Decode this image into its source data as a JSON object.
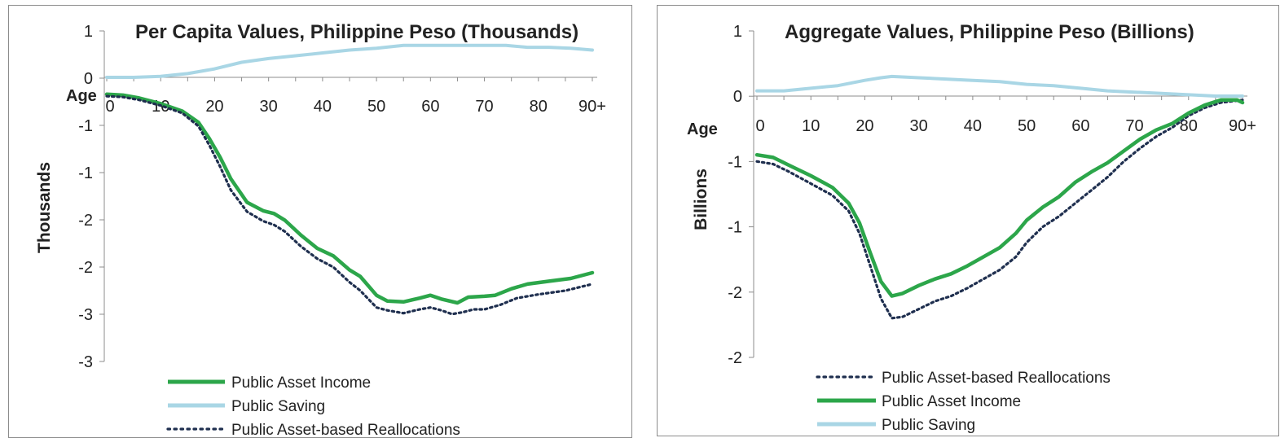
{
  "colors": {
    "public_asset_income": "#2ca64a",
    "public_saving": "#a9d6e5",
    "public_asset_based_reallocations": "#1f2f4f",
    "axis": "#8c8c8c"
  },
  "chart_data": [
    {
      "type": "line",
      "title": "Per Capita Values, Philippine Peso (Thousands)",
      "xlabel": "Age",
      "ylabel": "Thousands",
      "x_tick_labels": [
        "0",
        "10",
        "20",
        "30",
        "40",
        "50",
        "60",
        "70",
        "80",
        "90+"
      ],
      "y_tick_labels": [
        "1",
        "0",
        "-1",
        "-1",
        "-2",
        "-2",
        "-3",
        "-3"
      ],
      "x_range": [
        0,
        90
      ],
      "y_range": [
        -3.0,
        0.5
      ],
      "grid": false,
      "legend_position": "bottom",
      "legend_order": [
        "public_asset_income",
        "public_saving",
        "public_asset_based_reallocations"
      ],
      "series": [
        {
          "key": "public_asset_income",
          "name": "Public Asset Income",
          "style": "solid",
          "points": [
            [
              0,
              -0.18
            ],
            [
              3,
              -0.19
            ],
            [
              6,
              -0.22
            ],
            [
              10,
              -0.28
            ],
            [
              14,
              -0.36
            ],
            [
              17,
              -0.48
            ],
            [
              19,
              -0.65
            ],
            [
              21,
              -0.85
            ],
            [
              23,
              -1.08
            ],
            [
              26,
              -1.33
            ],
            [
              29,
              -1.42
            ],
            [
              31,
              -1.45
            ],
            [
              33,
              -1.52
            ],
            [
              36,
              -1.68
            ],
            [
              39,
              -1.82
            ],
            [
              42,
              -1.9
            ],
            [
              45,
              -2.05
            ],
            [
              47,
              -2.12
            ],
            [
              50,
              -2.32
            ],
            [
              52,
              -2.38
            ],
            [
              55,
              -2.39
            ],
            [
              58,
              -2.35
            ],
            [
              60,
              -2.32
            ],
            [
              62,
              -2.36
            ],
            [
              65,
              -2.4
            ],
            [
              67,
              -2.34
            ],
            [
              70,
              -2.33
            ],
            [
              72,
              -2.32
            ],
            [
              75,
              -2.25
            ],
            [
              78,
              -2.2
            ],
            [
              82,
              -2.17
            ],
            [
              86,
              -2.14
            ],
            [
              90,
              -2.08
            ]
          ]
        },
        {
          "key": "public_saving",
          "name": "Public Saving",
          "style": "solid",
          "points": [
            [
              0,
              0.0
            ],
            [
              5,
              0.0
            ],
            [
              10,
              0.01
            ],
            [
              15,
              0.04
            ],
            [
              20,
              0.09
            ],
            [
              25,
              0.16
            ],
            [
              30,
              0.2
            ],
            [
              35,
              0.23
            ],
            [
              40,
              0.26
            ],
            [
              45,
              0.29
            ],
            [
              50,
              0.31
            ],
            [
              55,
              0.34
            ],
            [
              60,
              0.34
            ],
            [
              65,
              0.34
            ],
            [
              70,
              0.34
            ],
            [
              74,
              0.34
            ],
            [
              78,
              0.32
            ],
            [
              82,
              0.32
            ],
            [
              86,
              0.31
            ],
            [
              90,
              0.29
            ]
          ]
        },
        {
          "key": "public_asset_based_reallocations",
          "name": "Public Asset-based Reallocations",
          "style": "dotted",
          "points": [
            [
              0,
              -0.2
            ],
            [
              3,
              -0.21
            ],
            [
              6,
              -0.24
            ],
            [
              10,
              -0.3
            ],
            [
              14,
              -0.38
            ],
            [
              17,
              -0.52
            ],
            [
              19,
              -0.72
            ],
            [
              21,
              -0.95
            ],
            [
              23,
              -1.2
            ],
            [
              26,
              -1.43
            ],
            [
              29,
              -1.53
            ],
            [
              31,
              -1.57
            ],
            [
              33,
              -1.64
            ],
            [
              36,
              -1.8
            ],
            [
              39,
              -1.93
            ],
            [
              42,
              -2.02
            ],
            [
              45,
              -2.18
            ],
            [
              47,
              -2.27
            ],
            [
              50,
              -2.45
            ],
            [
              52,
              -2.48
            ],
            [
              55,
              -2.51
            ],
            [
              58,
              -2.47
            ],
            [
              60,
              -2.45
            ],
            [
              62,
              -2.48
            ],
            [
              64,
              -2.52
            ],
            [
              66,
              -2.5
            ],
            [
              68,
              -2.47
            ],
            [
              70,
              -2.47
            ],
            [
              73,
              -2.42
            ],
            [
              76,
              -2.35
            ],
            [
              80,
              -2.31
            ],
            [
              85,
              -2.27
            ],
            [
              90,
              -2.2
            ]
          ]
        }
      ]
    },
    {
      "type": "line",
      "title": "Aggregate Values, Philippine Peso (Billions)",
      "xlabel": "Age",
      "ylabel": "Billions",
      "x_tick_labels": [
        "0",
        "10",
        "20",
        "30",
        "40",
        "50",
        "60",
        "70",
        "80",
        "90+"
      ],
      "y_tick_labels": [
        "1",
        "0",
        "-1",
        "-1",
        "-2",
        "-2"
      ],
      "x_range": [
        0,
        90
      ],
      "y_range": [
        -2.0,
        0.5
      ],
      "grid": false,
      "legend_position": "bottom",
      "legend_order": [
        "public_asset_based_reallocations",
        "public_asset_income",
        "public_saving"
      ],
      "series": [
        {
          "key": "public_asset_based_reallocations",
          "name": "Public Asset-based Reallocations",
          "style": "dotted",
          "points": [
            [
              0,
              -0.5
            ],
            [
              3,
              -0.52
            ],
            [
              6,
              -0.58
            ],
            [
              10,
              -0.67
            ],
            [
              14,
              -0.76
            ],
            [
              17,
              -0.88
            ],
            [
              19,
              -1.05
            ],
            [
              21,
              -1.3
            ],
            [
              23,
              -1.55
            ],
            [
              25,
              -1.7
            ],
            [
              27,
              -1.69
            ],
            [
              30,
              -1.63
            ],
            [
              33,
              -1.57
            ],
            [
              36,
              -1.53
            ],
            [
              39,
              -1.47
            ],
            [
              42,
              -1.4
            ],
            [
              45,
              -1.33
            ],
            [
              48,
              -1.23
            ],
            [
              50,
              -1.12
            ],
            [
              53,
              -1.0
            ],
            [
              56,
              -0.92
            ],
            [
              59,
              -0.82
            ],
            [
              62,
              -0.72
            ],
            [
              65,
              -0.62
            ],
            [
              68,
              -0.5
            ],
            [
              71,
              -0.4
            ],
            [
              74,
              -0.31
            ],
            [
              77,
              -0.24
            ],
            [
              80,
              -0.15
            ],
            [
              83,
              -0.09
            ],
            [
              86,
              -0.05
            ],
            [
              90,
              -0.03
            ]
          ]
        },
        {
          "key": "public_asset_income",
          "name": "Public Asset Income",
          "style": "solid",
          "points": [
            [
              0,
              -0.45
            ],
            [
              3,
              -0.47
            ],
            [
              6,
              -0.53
            ],
            [
              10,
              -0.61
            ],
            [
              14,
              -0.7
            ],
            [
              17,
              -0.82
            ],
            [
              19,
              -0.97
            ],
            [
              21,
              -1.2
            ],
            [
              23,
              -1.42
            ],
            [
              25,
              -1.53
            ],
            [
              27,
              -1.51
            ],
            [
              30,
              -1.45
            ],
            [
              33,
              -1.4
            ],
            [
              36,
              -1.36
            ],
            [
              39,
              -1.3
            ],
            [
              42,
              -1.23
            ],
            [
              45,
              -1.16
            ],
            [
              48,
              -1.05
            ],
            [
              50,
              -0.95
            ],
            [
              53,
              -0.85
            ],
            [
              56,
              -0.77
            ],
            [
              59,
              -0.66
            ],
            [
              62,
              -0.58
            ],
            [
              65,
              -0.51
            ],
            [
              68,
              -0.42
            ],
            [
              71,
              -0.33
            ],
            [
              74,
              -0.26
            ],
            [
              77,
              -0.21
            ],
            [
              80,
              -0.13
            ],
            [
              83,
              -0.07
            ],
            [
              86,
              -0.03
            ],
            [
              89,
              -0.03
            ],
            [
              90,
              -0.05
            ]
          ]
        },
        {
          "key": "public_saving",
          "name": "Public Saving",
          "style": "solid",
          "points": [
            [
              0,
              0.04
            ],
            [
              5,
              0.04
            ],
            [
              10,
              0.06
            ],
            [
              15,
              0.08
            ],
            [
              20,
              0.12
            ],
            [
              23,
              0.14
            ],
            [
              25,
              0.15
            ],
            [
              30,
              0.14
            ],
            [
              35,
              0.13
            ],
            [
              40,
              0.12
            ],
            [
              45,
              0.11
            ],
            [
              50,
              0.09
            ],
            [
              55,
              0.08
            ],
            [
              60,
              0.06
            ],
            [
              65,
              0.04
            ],
            [
              70,
              0.03
            ],
            [
              75,
              0.02
            ],
            [
              80,
              0.01
            ],
            [
              85,
              0.0
            ],
            [
              90,
              0.0
            ]
          ]
        }
      ]
    }
  ]
}
